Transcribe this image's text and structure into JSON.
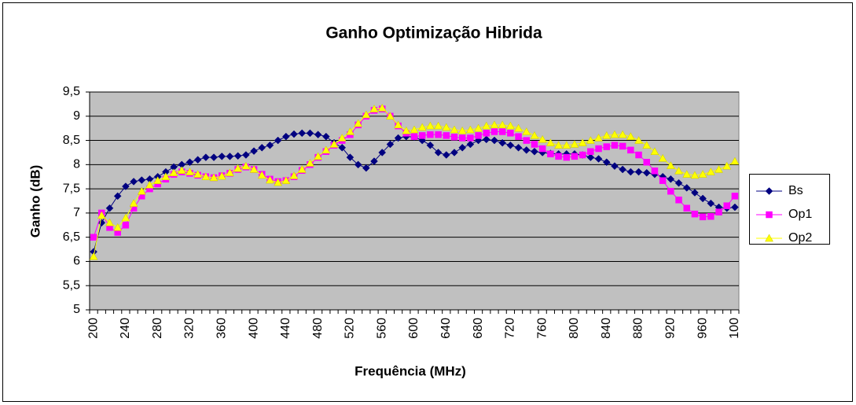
{
  "chart_data": {
    "type": "line",
    "title": "Ganho Optimização Hibrida",
    "x_label": "Frequência (MHz)",
    "y_label": "Ganho (dB)",
    "categories": [
      "200",
      null,
      null,
      null,
      "240",
      null,
      null,
      null,
      "280",
      null,
      null,
      null,
      "320",
      null,
      null,
      null,
      "360",
      null,
      null,
      null,
      "400",
      null,
      null,
      null,
      "440",
      null,
      null,
      null,
      "480",
      null,
      null,
      null,
      "520",
      null,
      null,
      null,
      "560",
      null,
      null,
      null,
      "600",
      null,
      null,
      null,
      "640",
      null,
      null,
      null,
      "680",
      null,
      null,
      null,
      "720",
      null,
      null,
      null,
      "760",
      null,
      null,
      null,
      "800",
      null,
      null,
      null,
      "840",
      null,
      null,
      null,
      "880",
      null,
      null,
      null,
      "920",
      null,
      null,
      null,
      "960",
      null,
      null,
      null,
      "100"
    ],
    "ylim": [
      5,
      9.5
    ],
    "yticks": [
      5,
      {
        "value": 5.5,
        "label": "5,5"
      },
      6,
      {
        "value": 6.5,
        "label": "6,5"
      },
      7,
      {
        "value": 7.5,
        "label": "7,5"
      },
      8,
      {
        "value": 8.5,
        "label": "8,5"
      },
      9,
      {
        "value": 9.5,
        "label": "9,5"
      }
    ],
    "grid": true,
    "legend": "right",
    "series": [
      {
        "name": "Bs",
        "color": "#000080",
        "marker": "diamond",
        "values": [
          6.2,
          6.8,
          7.1,
          7.35,
          7.55,
          7.65,
          7.68,
          7.7,
          7.75,
          7.85,
          7.95,
          8.0,
          8.05,
          8.1,
          8.15,
          8.15,
          8.17,
          8.17,
          8.18,
          8.2,
          8.28,
          8.35,
          8.4,
          8.5,
          8.58,
          8.63,
          8.65,
          8.65,
          8.62,
          8.58,
          8.45,
          8.35,
          8.15,
          8.0,
          7.93,
          8.07,
          8.25,
          8.42,
          8.55,
          8.58,
          8.57,
          8.5,
          8.4,
          8.25,
          8.2,
          8.25,
          8.35,
          8.42,
          8.5,
          8.52,
          8.5,
          8.45,
          8.4,
          8.35,
          8.3,
          8.27,
          8.25,
          8.23,
          8.22,
          8.22,
          8.22,
          8.2,
          8.15,
          8.12,
          8.05,
          7.97,
          7.9,
          7.85,
          7.85,
          7.83,
          7.8,
          7.75,
          7.7,
          7.62,
          7.52,
          7.42,
          7.3,
          7.2,
          7.12,
          7.1,
          7.12
        ]
      },
      {
        "name": "Op1",
        "color": "#ff00ff",
        "marker": "square",
        "values": [
          6.5,
          7.0,
          6.7,
          6.6,
          6.75,
          7.1,
          7.35,
          7.5,
          7.6,
          7.7,
          7.8,
          7.85,
          7.82,
          7.78,
          7.75,
          7.73,
          7.77,
          7.82,
          7.9,
          7.95,
          7.9,
          7.8,
          7.7,
          7.65,
          7.67,
          7.75,
          7.88,
          8.0,
          8.15,
          8.27,
          8.4,
          8.5,
          8.62,
          8.82,
          9.0,
          9.12,
          9.15,
          9.0,
          8.8,
          8.65,
          8.58,
          8.6,
          8.62,
          8.62,
          8.6,
          8.57,
          8.55,
          8.55,
          8.6,
          8.65,
          8.68,
          8.68,
          8.65,
          8.58,
          8.5,
          8.42,
          8.33,
          8.22,
          8.17,
          8.15,
          8.17,
          8.2,
          8.27,
          8.33,
          8.37,
          8.4,
          8.38,
          8.3,
          8.2,
          8.05,
          7.87,
          7.67,
          7.45,
          7.27,
          7.1,
          6.98,
          6.92,
          6.93,
          7.02,
          7.15,
          7.35
        ]
      },
      {
        "name": "Op2",
        "color": "#ffff00",
        "marker": "triangle",
        "values": [
          6.1,
          6.95,
          6.8,
          6.7,
          6.9,
          7.2,
          7.45,
          7.58,
          7.67,
          7.75,
          7.83,
          7.88,
          7.85,
          7.8,
          7.75,
          7.73,
          7.76,
          7.83,
          7.92,
          7.97,
          7.9,
          7.78,
          7.68,
          7.63,
          7.67,
          7.77,
          7.9,
          8.03,
          8.17,
          8.3,
          8.42,
          8.55,
          8.68,
          8.85,
          9.03,
          9.15,
          9.17,
          9.0,
          8.82,
          8.7,
          8.72,
          8.77,
          8.8,
          8.8,
          8.77,
          8.72,
          8.7,
          8.72,
          8.75,
          8.8,
          8.82,
          8.82,
          8.8,
          8.75,
          8.68,
          8.6,
          8.52,
          8.45,
          8.4,
          8.4,
          8.42,
          8.45,
          8.5,
          8.55,
          8.6,
          8.62,
          8.62,
          8.58,
          8.5,
          8.4,
          8.27,
          8.13,
          7.98,
          7.87,
          7.8,
          7.78,
          7.8,
          7.85,
          7.9,
          7.97,
          8.07
        ]
      }
    ]
  }
}
